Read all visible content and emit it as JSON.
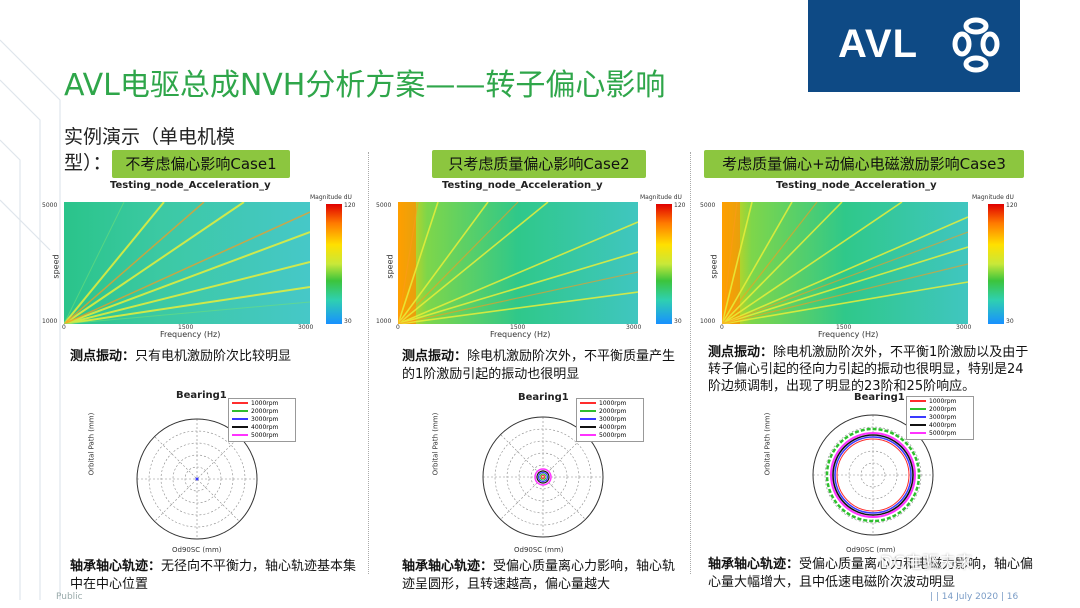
{
  "title": "AVL电驱总成NVH分析方案——转子偏心影响",
  "subtitle": "实例演示（单电机模型）：",
  "logo": {
    "text": "AVL"
  },
  "cases": [
    {
      "label": "不考虑偏心影响Case1",
      "plot_title": "Testing_node_Acceleration_y",
      "colorbar_title": "Magnitude dU",
      "colorbar_ticks": [
        "120",
        "110",
        "100",
        "90",
        "80",
        "70",
        "60",
        "50",
        "40",
        "30"
      ],
      "x_top_ticks": [
        "0",
        "5",
        "10",
        "15",
        "20",
        "25",
        "30",
        "35"
      ],
      "x_bottom_ticks": [
        "0",
        "750",
        "1500",
        "2250",
        "3000"
      ],
      "xlabel": "Frequency (Hz)",
      "ylabel": "speed",
      "y_ticks": [
        "5000",
        "4500",
        "4000",
        "3500",
        "3000",
        "2500",
        "2000",
        "1500",
        "1000"
      ],
      "desc_head": "测点振动：",
      "desc_body": "只有电机激励阶次比较明显",
      "polar_title": "Bearing1",
      "polar_xlabel": "Od90SC (mm)",
      "polar_ylabel": "Orbital Path (mm)",
      "polar_r_ticks": [
        "0.00025",
        "0.0002",
        "0.00015",
        "0.0001",
        "5e-05",
        "0"
      ],
      "polar_angles": [
        "0",
        "30",
        "60",
        "90",
        "120",
        "150",
        "180",
        "210",
        "240",
        "270",
        "300",
        "330"
      ],
      "legend": [
        "1000rpm",
        "2000rpm",
        "3000rpm",
        "4000rpm",
        "5000rpm"
      ],
      "orbit_head": "轴承轴心轨迹：",
      "orbit_body": "无径向不平衡力，轴心轨迹基本集中在中心位置"
    },
    {
      "label": "只考虑质量偏心影响Case2",
      "plot_title": "Testing_node_Acceleration_y",
      "colorbar_title": "Magnitude dU",
      "colorbar_ticks": [
        "120",
        "117",
        "108",
        "99",
        "90",
        "81",
        "72",
        "63",
        "54",
        "45",
        "36",
        "30"
      ],
      "x_top_ticks": [
        "0",
        "5",
        "10",
        "15",
        "20",
        "25",
        "30",
        "35"
      ],
      "x_bottom_ticks": [
        "0",
        "750",
        "1500",
        "2250",
        "3000"
      ],
      "xlabel": "Frequency (Hz)",
      "ylabel": "speed",
      "y_ticks": [
        "5000",
        "4500",
        "4000",
        "3500",
        "3000",
        "2500",
        "2000",
        "1500",
        "1000"
      ],
      "desc_head": "测点振动：",
      "desc_body": "除电机激励阶次外，不平衡质量产生的1阶激励引起的振动也很明显",
      "polar_title": "Bearing1",
      "polar_xlabel": "Od90SC (mm)",
      "polar_ylabel": "Orbital Path (mm)",
      "polar_r_ticks": [
        "0.00025",
        "0.0002",
        "0.00015",
        "0.0001",
        "5e-05",
        "0"
      ],
      "polar_angles": [
        "0",
        "30",
        "60",
        "90",
        "120",
        "150",
        "180",
        "210",
        "240",
        "270",
        "300",
        "330"
      ],
      "legend": [
        "1000rpm",
        "2000rpm",
        "3000rpm",
        "4000rpm",
        "5000rpm"
      ],
      "orbit_head": "轴承轴心轨迹：",
      "orbit_body": "受偏心质量离心力影响，轴心轨迹呈圆形，且转速越高，偏心量越大"
    },
    {
      "label": "考虑质量偏心+动偏心电磁激励影响Case3",
      "plot_title": "Testing_node_Acceleration_y",
      "colorbar_title": "Magnitude dU",
      "colorbar_ticks": [
        "120",
        "110",
        "100",
        "90",
        "80",
        "70",
        "60",
        "50",
        "40",
        "30"
      ],
      "x_top_ticks": [
        "0",
        "5",
        "10",
        "15",
        "20",
        "25",
        "30",
        "35"
      ],
      "x_bottom_ticks": [
        "0",
        "750",
        "1500",
        "2250",
        "3000"
      ],
      "xlabel": "Frequency (Hz)",
      "ylabel": "speed",
      "y_ticks": [
        "5000",
        "4500",
        "4000",
        "3500",
        "3000",
        "2500",
        "2000",
        "1500",
        "1000"
      ],
      "desc_head": "测点振动：",
      "desc_body": "除电机激励阶次外，不平衡1阶激励以及由于转子偏心引起的径向力引起的振动也很明显，特别是24阶边频调制，出现了明显的23阶和25阶响应。",
      "polar_title": "Bearing1",
      "polar_xlabel": "Od90SC (mm)",
      "polar_ylabel": "Orbital Path (mm)",
      "polar_r_ticks": [
        "0.00025",
        "0.0002",
        "0.00015",
        "0.0001",
        "5e-05",
        "0"
      ],
      "polar_angles": [
        "0",
        "30",
        "60",
        "90",
        "120",
        "150",
        "180",
        "210",
        "240",
        "270",
        "300",
        "330"
      ],
      "legend": [
        "1000rpm",
        "2000rpm",
        "3000rpm",
        "4000rpm",
        "5000rpm"
      ],
      "orbit_head": "轴承轴心轨迹：",
      "orbit_body": "受偏心质量离心力和电磁力影响，轴心偏心量大幅增大，且中低速电磁阶次波动明显"
    }
  ],
  "colors": {
    "title_green": "#2fa64a",
    "case_label_bg": "#8cc63f",
    "logo_blue": "#0e4a85",
    "legend_colors": [
      "#ff2d2d",
      "#2fbf2f",
      "#3a3aff",
      "#111111",
      "#ff33ff"
    ]
  },
  "footer": {
    "left": "Public",
    "right": "|  | 14 July 2020 | 16"
  },
  "watermark": "DC电驱未来"
}
